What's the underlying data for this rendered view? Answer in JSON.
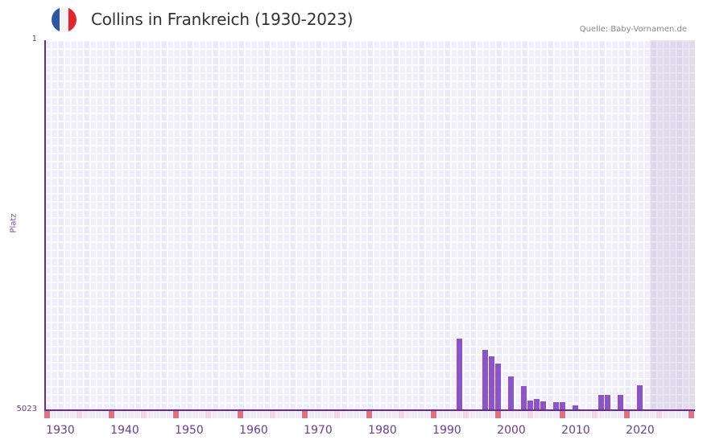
{
  "header": {
    "title": "Collins in Frankreich (1930-2023)",
    "source": "Quelle: Baby-Vornamen.de",
    "flag_colors": [
      "#2f55a4",
      "#f4f4f6",
      "#e3262d"
    ]
  },
  "axes": {
    "y_label": "Platz",
    "y_top_tick": "1",
    "y_bottom_tick": "5023",
    "x_ticks": [
      "1930",
      "1940",
      "1950",
      "1960",
      "1970",
      "1980",
      "1990",
      "2000",
      "2010",
      "2020"
    ]
  },
  "colors": {
    "bar": "#8b55c6",
    "axis": "#6a2c91",
    "decade_marker": "#e0737f",
    "half_decade_marker": "#f4d6de",
    "strip_cell": "#efeaf8",
    "shaded_region": "#e3dfec"
  },
  "chart_data": {
    "type": "bar",
    "title": "Collins in Frankreich (1930-2023)",
    "subtitle": "Quelle: Baby-Vornamen.de",
    "xlabel": "",
    "ylabel": "Platz",
    "y_inverted": true,
    "ylim": [
      5023,
      1
    ],
    "xlim": [
      1928,
      2028
    ],
    "x_tick_labels": [
      "1930",
      "1940",
      "1950",
      "1960",
      "1970",
      "1980",
      "1990",
      "2000",
      "2010",
      "2020"
    ],
    "shaded_from_year": 2022,
    "grid": true,
    "legend": null,
    "categories": [
      1992,
      1996,
      1997,
      1998,
      2000,
      2002,
      2003,
      2004,
      2005,
      2007,
      2008,
      2010,
      2014,
      2015,
      2017,
      2020
    ],
    "values": [
      4051,
      4204,
      4292,
      4390,
      4564,
      4695,
      4892,
      4870,
      4903,
      4914,
      4914,
      4957,
      4816,
      4816,
      4816,
      4685
    ]
  }
}
